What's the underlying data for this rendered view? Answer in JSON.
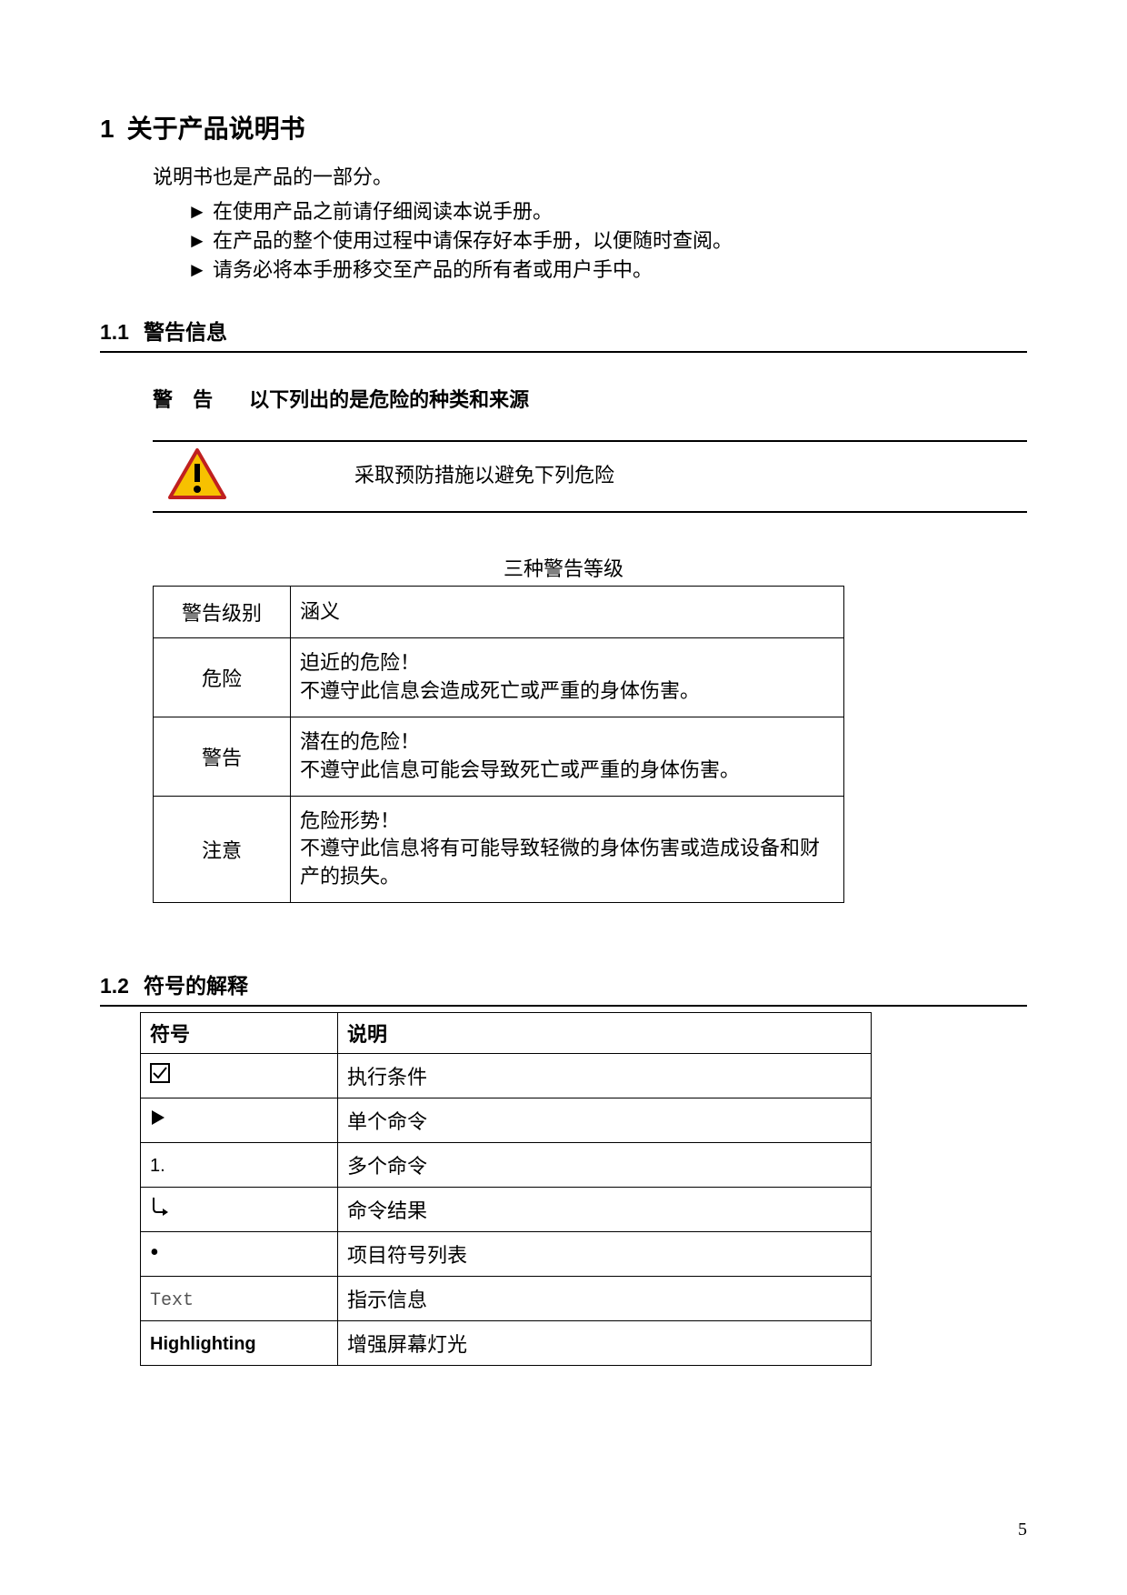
{
  "page_number": "5",
  "section1": {
    "number": "1",
    "title": "关于产品说明书",
    "intro": "说明书也是产品的一部分。",
    "bullet_marker": "►",
    "bullets": [
      "在使用产品之前请仔细阅读本说手册。",
      "在产品的整个使用过程中请保存好本手册，以便随时查阅。",
      "请务必将本手册移交至产品的所有者或用户手中。"
    ]
  },
  "section1_1": {
    "number": "1.1",
    "title": "警告信息",
    "warning_label": "警 告",
    "warning_head_text": "以下列出的是危险的种类和来源",
    "warning_body_text": "采取预防措施以避免下列危险",
    "icon": {
      "fill": "#f7c100",
      "stroke": "#c02020",
      "bang": "#000000"
    },
    "table_caption": "三种警告等级",
    "table": {
      "header": [
        "警告级别",
        "涵义"
      ],
      "rows": [
        {
          "level": "危险",
          "meaning": "迫近的危险！\n不遵守此信息会造成死亡或严重的身体伤害。"
        },
        {
          "level": "警告",
          "meaning": "潜在的危险！\n不遵守此信息可能会导致死亡或严重的身体伤害。"
        },
        {
          "level": "注意",
          "meaning": "危险形势！\n不遵守此信息将有可能导致轻微的身体伤害或造成设备和财产的损失。"
        }
      ]
    }
  },
  "section1_2": {
    "number": "1.2",
    "title": "符号的解释",
    "table": {
      "header": [
        "符号",
        "说明"
      ],
      "rows": [
        {
          "symbol_type": "checkbox",
          "desc": "执行条件"
        },
        {
          "symbol_type": "triangle",
          "desc": "单个命令"
        },
        {
          "symbol_type": "number",
          "symbol_text": "1.",
          "desc": "多个命令"
        },
        {
          "symbol_type": "arrow-down",
          "desc": "命令结果"
        },
        {
          "symbol_type": "bullet",
          "symbol_text": "•",
          "desc": "项目符号列表"
        },
        {
          "symbol_type": "mono",
          "symbol_text": "Text",
          "desc": "指示信息"
        },
        {
          "symbol_type": "bold",
          "symbol_text": "Highlighting",
          "desc": "增强屏幕灯光"
        }
      ]
    }
  }
}
